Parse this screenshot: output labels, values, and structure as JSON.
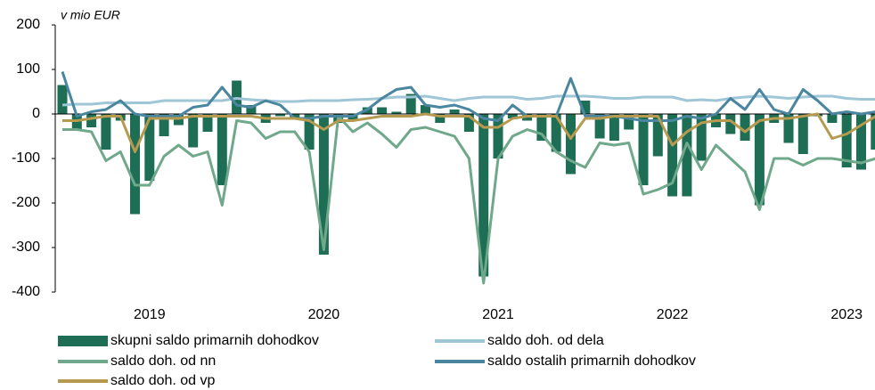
{
  "chart_data": {
    "type": "bar_line",
    "annotation": "v mio EUR",
    "categories": [
      null,
      null,
      null,
      null,
      null,
      null,
      "2019",
      null,
      null,
      null,
      null,
      null,
      null,
      null,
      null,
      null,
      null,
      null,
      "2020",
      null,
      null,
      null,
      null,
      null,
      null,
      null,
      null,
      null,
      null,
      null,
      "2021",
      null,
      null,
      null,
      null,
      null,
      null,
      null,
      null,
      null,
      null,
      null,
      "2022",
      null,
      null,
      null,
      null,
      null,
      null,
      null,
      null,
      null,
      null,
      null,
      "2023",
      null,
      null
    ],
    "ylim": [
      -400,
      200
    ],
    "yticks": [
      -400,
      -300,
      -200,
      -100,
      0,
      100,
      200
    ],
    "series": [
      {
        "name": "skupni saldo primarnih dohodkov",
        "kind": "bar",
        "color": "#1e6e55",
        "values": [
          65,
          -35,
          -30,
          -80,
          -15,
          -225,
          -150,
          -50,
          -25,
          -75,
          -40,
          -160,
          75,
          20,
          -20,
          -5,
          -10,
          -80,
          -316,
          -20,
          -15,
          15,
          15,
          5,
          45,
          20,
          -20,
          10,
          -40,
          -365,
          -100,
          -10,
          -15,
          -60,
          -85,
          -135,
          30,
          -55,
          -60,
          -35,
          -160,
          -95,
          -185,
          -185,
          -105,
          -30,
          -45,
          -60,
          -205,
          -20,
          -65,
          -90,
          -5,
          -20,
          -120,
          -125,
          -80
        ]
      },
      {
        "name": "saldo doh. od dela",
        "kind": "line",
        "color": "#9fc6d6",
        "values": [
          20,
          22,
          22,
          25,
          25,
          25,
          25,
          30,
          30,
          30,
          30,
          30,
          35,
          32,
          30,
          28,
          28,
          30,
          30,
          30,
          32,
          33,
          35,
          38,
          38,
          40,
          35,
          30,
          35,
          38,
          38,
          38,
          33,
          35,
          40,
          40,
          40,
          38,
          35,
          35,
          38,
          38,
          38,
          30,
          32,
          30,
          35,
          38,
          40,
          38,
          35,
          38,
          40,
          40,
          35,
          33,
          33
        ]
      },
      {
        "name": "saldo doh. od nn",
        "kind": "line",
        "color": "#6fa88a",
        "values": [
          -35,
          -35,
          -40,
          -105,
          -85,
          -160,
          -160,
          -95,
          -70,
          -95,
          -85,
          -205,
          -15,
          -20,
          -55,
          -40,
          -40,
          -85,
          -305,
          -5,
          -40,
          -20,
          -45,
          -75,
          -35,
          -30,
          -40,
          -50,
          -100,
          -380,
          -100,
          -50,
          -35,
          -45,
          -85,
          -105,
          -120,
          -65,
          -70,
          -65,
          -180,
          -170,
          -155,
          -65,
          -125,
          -70,
          -100,
          -130,
          -215,
          -100,
          -100,
          -115,
          -100,
          -100,
          -105,
          -110,
          -100
        ]
      },
      {
        "name": "saldo ostalih primarnih dohodkov",
        "kind": "line",
        "color": "#4a86a0",
        "values": [
          95,
          -5,
          5,
          10,
          30,
          0,
          -5,
          -5,
          -5,
          15,
          20,
          60,
          20,
          15,
          30,
          20,
          -10,
          -10,
          -5,
          -5,
          -5,
          10,
          35,
          55,
          60,
          20,
          15,
          20,
          10,
          -10,
          -15,
          20,
          -5,
          -5,
          -5,
          80,
          -5,
          -5,
          -5,
          -10,
          -15,
          -15,
          -15,
          -5,
          -10,
          0,
          35,
          10,
          55,
          10,
          0,
          55,
          30,
          0,
          5,
          0,
          5
        ]
      },
      {
        "name": "saldo doh. od vp",
        "kind": "line",
        "color": "#b59a50",
        "values": [
          -15,
          -15,
          -10,
          -5,
          -5,
          -85,
          -10,
          -10,
          -10,
          -5,
          -5,
          -5,
          -5,
          -5,
          -10,
          -10,
          -10,
          -15,
          -35,
          -15,
          -15,
          -10,
          -5,
          -5,
          -5,
          0,
          -5,
          -5,
          -5,
          -30,
          -30,
          -10,
          -5,
          -5,
          -5,
          -55,
          -10,
          -10,
          -5,
          -5,
          -5,
          -5,
          -70,
          -40,
          -20,
          -15,
          -15,
          -40,
          -15,
          -10,
          -10,
          -5,
          0,
          -55,
          -45,
          -25,
          -5
        ]
      }
    ]
  }
}
